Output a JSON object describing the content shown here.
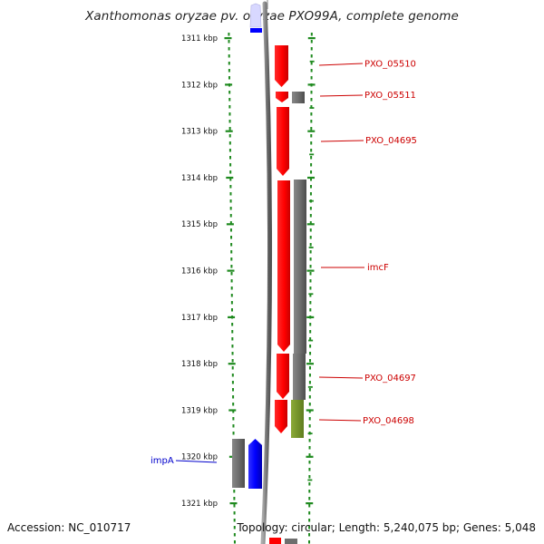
{
  "title": "Xanthomonas oryzae pv. oryzae PXO99A, complete genome",
  "footer": {
    "accession": "Accession: NC_010717",
    "summary": "Topology: circular; Length: 5,240,075 bp; Genes: 5,048"
  },
  "ruler": {
    "unit": "kbp",
    "start_kbp": 1311,
    "end_kbp": 1321,
    "labels": [
      "1311 kbp",
      "1312 kbp",
      "1313 kbp",
      "1314 kbp",
      "1315 kbp",
      "1316 kbp",
      "1317 kbp",
      "1318 kbp",
      "1319 kbp",
      "1320 kbp",
      "1321 kbp"
    ]
  },
  "colors": {
    "cds_forward_track": "#ff0000",
    "gene_track": "#707070",
    "highlight_gene": "#0000ff",
    "misc_gene": "#7a9a2a",
    "ruler_dots": "#1f8a1f",
    "label_red": "#cc0000",
    "label_blue": "#0000cc"
  },
  "gene_labels": [
    {
      "name": "PXO_05510",
      "color": "#cc0000"
    },
    {
      "name": "PXO_05511",
      "color": "#cc0000"
    },
    {
      "name": "PXO_04695",
      "color": "#cc0000"
    },
    {
      "name": "imcF",
      "color": "#cc0000"
    },
    {
      "name": "PXO_04697",
      "color": "#cc0000"
    },
    {
      "name": "PXO_04698",
      "color": "#cc0000"
    },
    {
      "name": "impA",
      "color": "#0000cc"
    }
  ]
}
